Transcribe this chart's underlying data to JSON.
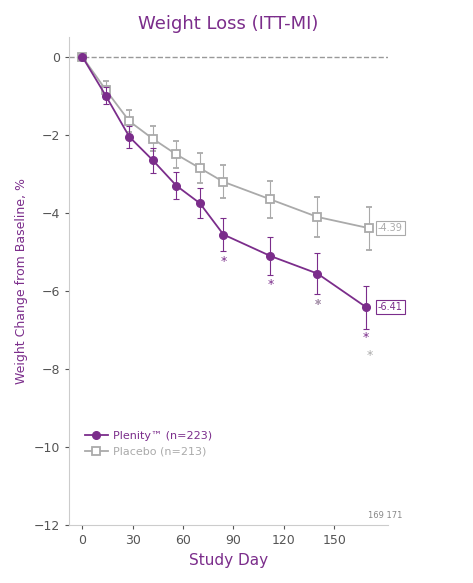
{
  "title": "Weight Loss (ITT-MI)",
  "xlabel": "Study Day",
  "ylabel": "Weight Change from Baseline, %",
  "title_color": "#7B2D8B",
  "xlabel_color": "#7B2D8B",
  "ylabel_color": "#7B2D8B",
  "plenity_color": "#7B2D8B",
  "placebo_color": "#AAAAAA",
  "plenity_days": [
    0,
    14,
    28,
    42,
    56,
    70,
    84,
    112,
    140,
    169
  ],
  "plenity_values": [
    0,
    -1.0,
    -2.05,
    -2.65,
    -3.3,
    -3.75,
    -4.55,
    -5.1,
    -5.55,
    -6.41
  ],
  "plenity_se": [
    0.0,
    0.22,
    0.28,
    0.32,
    0.35,
    0.38,
    0.42,
    0.48,
    0.52,
    0.55
  ],
  "placebo_days": [
    0,
    14,
    28,
    42,
    56,
    70,
    84,
    112,
    140,
    171
  ],
  "placebo_values": [
    0,
    -0.85,
    -1.65,
    -2.1,
    -2.5,
    -2.85,
    -3.2,
    -3.65,
    -4.1,
    -4.39
  ],
  "placebo_se": [
    0.0,
    0.22,
    0.28,
    0.32,
    0.35,
    0.38,
    0.42,
    0.48,
    0.52,
    0.55
  ],
  "star_plenity_days": [
    84,
    112,
    140,
    169
  ],
  "star_plenity_vals": [
    -5.25,
    -5.82,
    -6.35,
    -7.2
  ],
  "star_placebo_days": [
    140,
    171
  ],
  "star_placebo_vals": [
    -6.35,
    -7.65
  ],
  "annotation_169_171": "169 171",
  "label_plenity": "Plenity™ (n=223)",
  "label_placebo": "Placebo (n=213)",
  "label_439": "-4.39",
  "label_641": "-6.41",
  "ylim": [
    -12,
    0.5
  ],
  "xlim": [
    -8,
    182
  ],
  "yticks": [
    0,
    -2,
    -4,
    -6,
    -8,
    -10,
    -12
  ],
  "xticks": [
    0,
    30,
    60,
    90,
    120,
    150
  ],
  "background_color": "#FFFFFF",
  "dashed_line_color": "#999999",
  "fig_width": 4.73,
  "fig_height": 5.83
}
